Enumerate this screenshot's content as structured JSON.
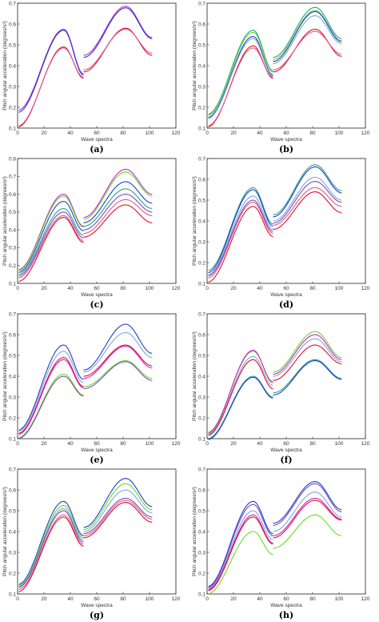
{
  "colors": {
    "red": "#e0102a",
    "pink": "#e05a8a",
    "magenta": "#cc22cc",
    "purple": "#7a4cc4",
    "blue": "#1f3fd0",
    "teal": "#2a9f8a",
    "green": "#66dd22",
    "lightblue": "#7fa8d8"
  },
  "panels": [
    {
      "label": "(a)",
      "xlabel": "Wave spectra",
      "ylabel": "Pitch angular acceleration (degrees/s²)",
      "chart_data": {
        "type": "line",
        "xlim": [
          0,
          120
        ],
        "ylim": [
          0.1,
          0.7
        ],
        "xticks": [
          0,
          20,
          40,
          60,
          80,
          100,
          120
        ],
        "yticks": [
          0.1,
          0.2,
          0.3,
          0.4,
          0.5,
          0.6,
          0.7
        ],
        "series": [
          {
            "color": "#cc22cc",
            "values": [
              0.185,
              0.575,
              0.36,
              0.45,
              0.685,
              0.535
            ]
          },
          {
            "color": "#1f3fd0",
            "values": [
              0.175,
              0.57,
              0.355,
              0.44,
              0.678,
              0.53
            ]
          },
          {
            "color": "#e0102a",
            "values": [
              0.105,
              0.49,
              0.34,
              0.37,
              0.58,
              0.45
            ]
          },
          {
            "color": "#e05a8a",
            "values": [
              0.11,
              0.485,
              0.345,
              0.38,
              0.575,
              0.46
            ]
          }
        ]
      }
    },
    {
      "label": "(b)",
      "xlabel": "Wave spectra",
      "ylabel": "Pitch angular acceleration (degrees/s²)",
      "chart_data": {
        "type": "line",
        "xlim": [
          0,
          120
        ],
        "ylim": [
          0.1,
          0.7
        ],
        "xticks": [
          0,
          20,
          40,
          60,
          80,
          100,
          120
        ],
        "yticks": [
          0.1,
          0.2,
          0.3,
          0.4,
          0.5,
          0.6,
          0.7
        ],
        "series": [
          {
            "color": "#2a9f8a",
            "values": [
              0.165,
              0.57,
              0.375,
              0.44,
              0.68,
              0.53
            ]
          },
          {
            "color": "#66dd22",
            "values": [
              0.16,
              0.56,
              0.37,
              0.43,
              0.665,
              0.52
            ]
          },
          {
            "color": "#1f3fd0",
            "values": [
              0.15,
              0.54,
              0.355,
              0.42,
              0.66,
              0.515
            ]
          },
          {
            "color": "#7fa8d8",
            "values": [
              0.145,
              0.53,
              0.35,
              0.41,
              0.64,
              0.505
            ]
          },
          {
            "color": "#e0102a",
            "values": [
              0.105,
              0.495,
              0.34,
              0.37,
              0.575,
              0.445
            ]
          },
          {
            "color": "#e05a8a",
            "values": [
              0.11,
              0.485,
              0.345,
              0.38,
              0.565,
              0.455
            ]
          }
        ]
      }
    },
    {
      "label": "(c)",
      "xlabel": "Wave spectra",
      "ylabel": "Pitch angular acceleration (degrees/s²)",
      "chart_data": {
        "type": "line",
        "xlim": [
          0,
          120
        ],
        "ylim": [
          0.1,
          0.8
        ],
        "xticks": [
          0,
          20,
          40,
          60,
          80,
          100,
          120
        ],
        "yticks": [
          0.1,
          0.2,
          0.3,
          0.4,
          0.5,
          0.6,
          0.7,
          0.8
        ],
        "series": [
          {
            "color": "#cc22cc",
            "values": [
              0.175,
              0.6,
              0.42,
              0.47,
              0.74,
              0.6
            ]
          },
          {
            "color": "#66dd22",
            "values": [
              0.17,
              0.59,
              0.415,
              0.46,
              0.725,
              0.59
            ]
          },
          {
            "color": "#1f3fd0",
            "values": [
              0.16,
              0.56,
              0.395,
              0.44,
              0.67,
              0.55
            ]
          },
          {
            "color": "#2a9f8a",
            "values": [
              0.15,
              0.52,
              0.37,
              0.42,
              0.63,
              0.52
            ]
          },
          {
            "color": "#7a4cc4",
            "values": [
              0.14,
              0.5,
              0.355,
              0.4,
              0.6,
              0.5
            ]
          },
          {
            "color": "#e05a8a",
            "values": [
              0.13,
              0.48,
              0.34,
              0.38,
              0.57,
              0.48
            ]
          },
          {
            "color": "#e0102a",
            "values": [
              0.11,
              0.47,
              0.33,
              0.36,
              0.54,
              0.44
            ]
          }
        ]
      }
    },
    {
      "label": "(d)",
      "xlabel": "Wave spectra",
      "ylabel": "Pitch angular acceleration (degrees/s²)",
      "chart_data": {
        "type": "line",
        "xlim": [
          0,
          120
        ],
        "ylim": [
          0.1,
          0.7
        ],
        "xticks": [
          0,
          20,
          40,
          60,
          80,
          100,
          120
        ],
        "yticks": [
          0.1,
          0.2,
          0.3,
          0.4,
          0.5,
          0.6,
          0.7
        ],
        "series": [
          {
            "color": "#2a9f8a",
            "values": [
              0.16,
              0.56,
              0.385,
              0.43,
              0.67,
              0.545
            ]
          },
          {
            "color": "#1f3fd0",
            "values": [
              0.15,
              0.55,
              0.375,
              0.42,
              0.66,
              0.535
            ]
          },
          {
            "color": "#7fa8d8",
            "values": [
              0.14,
              0.52,
              0.36,
              0.4,
              0.61,
              0.5
            ]
          },
          {
            "color": "#7a4cc4",
            "values": [
              0.135,
              0.5,
              0.35,
              0.39,
              0.59,
              0.49
            ]
          },
          {
            "color": "#e05a8a",
            "values": [
              0.125,
              0.49,
              0.34,
              0.38,
              0.56,
              0.47
            ]
          },
          {
            "color": "#e0102a",
            "values": [
              0.105,
              0.47,
              0.325,
              0.36,
              0.54,
              0.44
            ]
          }
        ]
      }
    },
    {
      "label": "(e)",
      "xlabel": "Wave spectra",
      "ylabel": "Pitch angular acceleration (degrees/s²)",
      "chart_data": {
        "type": "line",
        "xlim": [
          0,
          120
        ],
        "ylim": [
          0.1,
          0.7
        ],
        "xticks": [
          0,
          20,
          40,
          60,
          80,
          100,
          120
        ],
        "yticks": [
          0.1,
          0.2,
          0.3,
          0.4,
          0.5,
          0.6,
          0.7
        ],
        "series": [
          {
            "color": "#1f3fd0",
            "values": [
              0.14,
              0.55,
              0.385,
              0.43,
              0.65,
              0.51
            ]
          },
          {
            "color": "#7fa8d8",
            "values": [
              0.135,
              0.52,
              0.37,
              0.42,
              0.61,
              0.49
            ]
          },
          {
            "color": "#e0102a",
            "values": [
              0.125,
              0.49,
              0.35,
              0.4,
              0.55,
              0.45
            ]
          },
          {
            "color": "#cc22cc",
            "values": [
              0.12,
              0.48,
              0.345,
              0.39,
              0.545,
              0.44
            ]
          },
          {
            "color": "#66dd22",
            "values": [
              0.105,
              0.41,
              0.31,
              0.35,
              0.475,
              0.39
            ]
          },
          {
            "color": "#7a4cc4",
            "values": [
              0.1,
              0.4,
              0.305,
              0.34,
              0.47,
              0.38
            ]
          }
        ]
      }
    },
    {
      "label": "(f)",
      "xlabel": "Wave spectra",
      "ylabel": "Pitch angular acceleration (degrees/s²)",
      "chart_data": {
        "type": "line",
        "xlim": [
          0,
          120
        ],
        "ylim": [
          0.1,
          0.7
        ],
        "xticks": [
          0,
          20,
          40,
          60,
          80,
          100,
          120
        ],
        "yticks": [
          0.1,
          0.2,
          0.3,
          0.4,
          0.5,
          0.6,
          0.7
        ],
        "series": [
          {
            "color": "#66dd22",
            "values": [
              0.13,
              0.52,
              0.375,
              0.42,
              0.615,
              0.49
            ]
          },
          {
            "color": "#cc22cc",
            "values": [
              0.125,
              0.525,
              0.37,
              0.41,
              0.6,
              0.48
            ]
          },
          {
            "color": "#7fa8d8",
            "values": [
              0.12,
              0.495,
              0.355,
              0.4,
              0.58,
              0.47
            ]
          },
          {
            "color": "#e0102a",
            "values": [
              0.115,
              0.48,
              0.34,
              0.38,
              0.55,
              0.46
            ]
          },
          {
            "color": "#2a9f8a",
            "values": [
              0.1,
              0.4,
              0.3,
              0.32,
              0.48,
              0.39
            ]
          },
          {
            "color": "#1f3fd0",
            "values": [
              0.095,
              0.395,
              0.295,
              0.31,
              0.475,
              0.385
            ]
          }
        ]
      }
    },
    {
      "label": "(g)",
      "xlabel": "Wave spectra",
      "ylabel": "Pitch angular acceleration (degrees/s²)",
      "chart_data": {
        "type": "line",
        "xlim": [
          0,
          120
        ],
        "ylim": [
          0.1,
          0.7
        ],
        "xticks": [
          0,
          20,
          40,
          60,
          80,
          100,
          120
        ],
        "yticks": [
          0.1,
          0.2,
          0.3,
          0.4,
          0.5,
          0.6,
          0.7
        ],
        "series": [
          {
            "color": "#1f3fd0",
            "values": [
              0.145,
              0.545,
              0.38,
              0.42,
              0.655,
              0.52
            ]
          },
          {
            "color": "#66dd22",
            "values": [
              0.14,
              0.525,
              0.37,
              0.41,
              0.63,
              0.505
            ]
          },
          {
            "color": "#7fa8d8",
            "values": [
              0.135,
              0.51,
              0.36,
              0.4,
              0.6,
              0.49
            ]
          },
          {
            "color": "#7a4cc4",
            "values": [
              0.13,
              0.5,
              0.35,
              0.39,
              0.56,
              0.47
            ]
          },
          {
            "color": "#e05a8a",
            "values": [
              0.12,
              0.48,
              0.34,
              0.38,
              0.55,
              0.46
            ]
          },
          {
            "color": "#e0102a",
            "values": [
              0.11,
              0.47,
              0.33,
              0.37,
              0.54,
              0.445
            ]
          }
        ]
      }
    },
    {
      "label": "(h)",
      "xlabel": "Wave spectra",
      "ylabel": "Pitch angular acceleration (degrees/s²)",
      "chart_data": {
        "type": "line",
        "xlim": [
          0,
          120
        ],
        "ylim": [
          0.1,
          0.7
        ],
        "xticks": [
          0,
          20,
          40,
          60,
          80,
          100,
          120
        ],
        "yticks": [
          0.1,
          0.2,
          0.3,
          0.4,
          0.5,
          0.6,
          0.7
        ],
        "series": [
          {
            "color": "#1f3fd0",
            "values": [
              0.135,
              0.545,
              0.39,
              0.44,
              0.64,
              0.505
            ]
          },
          {
            "color": "#7a4cc4",
            "values": [
              0.13,
              0.53,
              0.38,
              0.43,
              0.63,
              0.495
            ]
          },
          {
            "color": "#7fa8d8",
            "values": [
              0.125,
              0.5,
              0.36,
              0.4,
              0.59,
              0.47
            ]
          },
          {
            "color": "#cc22cc",
            "values": [
              0.12,
              0.48,
              0.345,
              0.38,
              0.56,
              0.46
            ]
          },
          {
            "color": "#e0102a",
            "values": [
              0.115,
              0.47,
              0.34,
              0.37,
              0.55,
              0.455
            ]
          },
          {
            "color": "#66dd22",
            "values": [
              0.1,
              0.4,
              0.29,
              0.32,
              0.48,
              0.38
            ]
          }
        ]
      }
    }
  ]
}
